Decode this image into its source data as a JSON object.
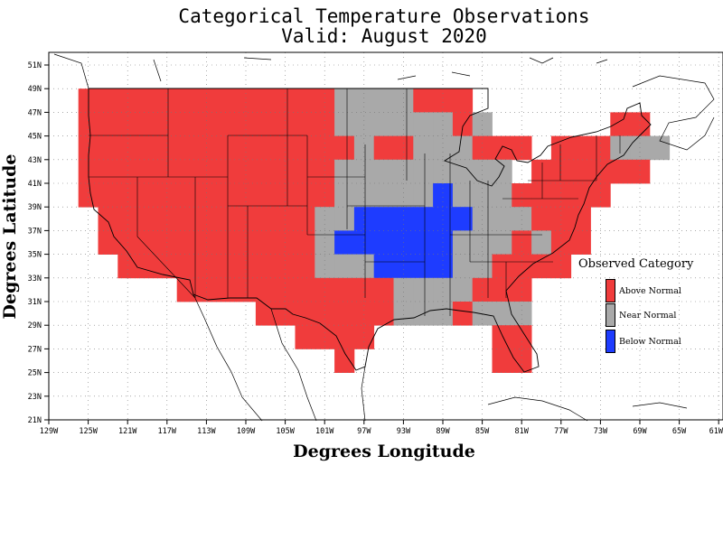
{
  "title": {
    "line1": "Categorical Temperature Observations",
    "line2": "Valid: August 2020"
  },
  "axes": {
    "xlabel": "Degrees Longitude",
    "ylabel": "Degrees Latitude",
    "xticks": [
      "129W",
      "125W",
      "121W",
      "117W",
      "113W",
      "109W",
      "105W",
      "101W",
      "97W",
      "93W",
      "89W",
      "85W",
      "81W",
      "77W",
      "73W",
      "69W",
      "65W",
      "61W"
    ],
    "yticks": [
      "21N",
      "23N",
      "25N",
      "27N",
      "29N",
      "31N",
      "33N",
      "35N",
      "37N",
      "39N",
      "41N",
      "43N",
      "45N",
      "47N",
      "49N",
      "51N"
    ],
    "lon_range": [
      -129,
      -61
    ],
    "lat_range": [
      21,
      52
    ],
    "grid": "dotted"
  },
  "legend": {
    "title": "Observed Category",
    "items": [
      {
        "label": "Above Normal",
        "color": "#f03c3c"
      },
      {
        "label": "Near Normal",
        "color": "#a9a9a9"
      },
      {
        "label": "Below Normal",
        "color": "#1e3cff"
      }
    ]
  },
  "chart_data": {
    "type": "heatmap",
    "cell_size_degrees": 2,
    "categories": {
      "A": "Above Normal",
      "N": "Near Normal",
      "B": "Below Normal"
    },
    "rows": [
      {
        "lat": 48,
        "cells": [
          [
            -125,
            "A"
          ],
          [
            -123,
            "A"
          ],
          [
            -121,
            "A"
          ],
          [
            -119,
            "A"
          ],
          [
            -117,
            "A"
          ],
          [
            -115,
            "A"
          ],
          [
            -113,
            "A"
          ],
          [
            -111,
            "A"
          ],
          [
            -109,
            "A"
          ],
          [
            -107,
            "A"
          ],
          [
            -105,
            "A"
          ],
          [
            -103,
            "A"
          ],
          [
            -101,
            "A"
          ],
          [
            -99,
            "N"
          ],
          [
            -97,
            "N"
          ],
          [
            -95,
            "N"
          ],
          [
            -93,
            "N"
          ],
          [
            -91,
            "A"
          ],
          [
            -89,
            "A"
          ],
          [
            -87,
            "A"
          ]
        ]
      },
      {
        "lat": 46,
        "cells": [
          [
            -125,
            "A"
          ],
          [
            -123,
            "A"
          ],
          [
            -121,
            "A"
          ],
          [
            -119,
            "A"
          ],
          [
            -117,
            "A"
          ],
          [
            -115,
            "A"
          ],
          [
            -113,
            "A"
          ],
          [
            -111,
            "A"
          ],
          [
            -109,
            "A"
          ],
          [
            -107,
            "A"
          ],
          [
            -105,
            "A"
          ],
          [
            -103,
            "A"
          ],
          [
            -101,
            "A"
          ],
          [
            -99,
            "N"
          ],
          [
            -97,
            "N"
          ],
          [
            -95,
            "N"
          ],
          [
            -93,
            "N"
          ],
          [
            -91,
            "N"
          ],
          [
            -89,
            "N"
          ],
          [
            -87,
            "A"
          ],
          [
            -85,
            "N"
          ],
          [
            -71,
            "A"
          ],
          [
            -69,
            "A"
          ]
        ]
      },
      {
        "lat": 44,
        "cells": [
          [
            -125,
            "A"
          ],
          [
            -123,
            "A"
          ],
          [
            -121,
            "A"
          ],
          [
            -119,
            "A"
          ],
          [
            -117,
            "A"
          ],
          [
            -115,
            "A"
          ],
          [
            -113,
            "A"
          ],
          [
            -111,
            "A"
          ],
          [
            -109,
            "A"
          ],
          [
            -107,
            "A"
          ],
          [
            -105,
            "A"
          ],
          [
            -103,
            "A"
          ],
          [
            -101,
            "A"
          ],
          [
            -99,
            "A"
          ],
          [
            -97,
            "N"
          ],
          [
            -95,
            "A"
          ],
          [
            -93,
            "A"
          ],
          [
            -91,
            "N"
          ],
          [
            -89,
            "N"
          ],
          [
            -87,
            "N"
          ],
          [
            -85,
            "A"
          ],
          [
            -83,
            "A"
          ],
          [
            -81,
            "A"
          ],
          [
            -77,
            "A"
          ],
          [
            -75,
            "A"
          ],
          [
            -73,
            "A"
          ],
          [
            -71,
            "N"
          ],
          [
            -69,
            "N"
          ],
          [
            -67,
            "N"
          ]
        ]
      },
      {
        "lat": 42,
        "cells": [
          [
            -125,
            "A"
          ],
          [
            -123,
            "A"
          ],
          [
            -121,
            "A"
          ],
          [
            -119,
            "A"
          ],
          [
            -117,
            "A"
          ],
          [
            -115,
            "A"
          ],
          [
            -113,
            "A"
          ],
          [
            -111,
            "A"
          ],
          [
            -109,
            "A"
          ],
          [
            -107,
            "A"
          ],
          [
            -105,
            "A"
          ],
          [
            -103,
            "A"
          ],
          [
            -101,
            "A"
          ],
          [
            -99,
            "N"
          ],
          [
            -97,
            "N"
          ],
          [
            -95,
            "N"
          ],
          [
            -93,
            "N"
          ],
          [
            -91,
            "N"
          ],
          [
            -89,
            "N"
          ],
          [
            -87,
            "N"
          ],
          [
            -85,
            "N"
          ],
          [
            -83,
            "N"
          ],
          [
            -79,
            "A"
          ],
          [
            -77,
            "A"
          ],
          [
            -75,
            "A"
          ],
          [
            -73,
            "A"
          ],
          [
            -71,
            "A"
          ],
          [
            -69,
            "A"
          ]
        ]
      },
      {
        "lat": 40,
        "cells": [
          [
            -125,
            "A"
          ],
          [
            -123,
            "A"
          ],
          [
            -121,
            "A"
          ],
          [
            -119,
            "A"
          ],
          [
            -117,
            "A"
          ],
          [
            -115,
            "A"
          ],
          [
            -113,
            "A"
          ],
          [
            -111,
            "A"
          ],
          [
            -109,
            "A"
          ],
          [
            -107,
            "A"
          ],
          [
            -105,
            "A"
          ],
          [
            -103,
            "A"
          ],
          [
            -101,
            "A"
          ],
          [
            -99,
            "N"
          ],
          [
            -97,
            "N"
          ],
          [
            -95,
            "N"
          ],
          [
            -93,
            "N"
          ],
          [
            -91,
            "N"
          ],
          [
            -89,
            "B"
          ],
          [
            -87,
            "N"
          ],
          [
            -85,
            "N"
          ],
          [
            -83,
            "N"
          ],
          [
            -81,
            "A"
          ],
          [
            -79,
            "A"
          ],
          [
            -77,
            "A"
          ],
          [
            -75,
            "A"
          ],
          [
            -73,
            "A"
          ]
        ]
      },
      {
        "lat": 38,
        "cells": [
          [
            -123,
            "A"
          ],
          [
            -121,
            "A"
          ],
          [
            -119,
            "A"
          ],
          [
            -117,
            "A"
          ],
          [
            -115,
            "A"
          ],
          [
            -113,
            "A"
          ],
          [
            -111,
            "A"
          ],
          [
            -109,
            "A"
          ],
          [
            -107,
            "A"
          ],
          [
            -105,
            "A"
          ],
          [
            -103,
            "A"
          ],
          [
            -101,
            "N"
          ],
          [
            -99,
            "N"
          ],
          [
            -97,
            "B"
          ],
          [
            -95,
            "B"
          ],
          [
            -93,
            "B"
          ],
          [
            -91,
            "B"
          ],
          [
            -89,
            "B"
          ],
          [
            -87,
            "B"
          ],
          [
            -85,
            "N"
          ],
          [
            -83,
            "N"
          ],
          [
            -81,
            "N"
          ],
          [
            -79,
            "A"
          ],
          [
            -77,
            "A"
          ],
          [
            -75,
            "A"
          ]
        ]
      },
      {
        "lat": 36,
        "cells": [
          [
            -123,
            "A"
          ],
          [
            -121,
            "A"
          ],
          [
            -119,
            "A"
          ],
          [
            -117,
            "A"
          ],
          [
            -115,
            "A"
          ],
          [
            -113,
            "A"
          ],
          [
            -111,
            "A"
          ],
          [
            -109,
            "A"
          ],
          [
            -107,
            "A"
          ],
          [
            -105,
            "A"
          ],
          [
            -103,
            "A"
          ],
          [
            -101,
            "N"
          ],
          [
            -99,
            "B"
          ],
          [
            -97,
            "B"
          ],
          [
            -95,
            "B"
          ],
          [
            -93,
            "B"
          ],
          [
            -91,
            "B"
          ],
          [
            -89,
            "B"
          ],
          [
            -87,
            "N"
          ],
          [
            -85,
            "N"
          ],
          [
            -83,
            "N"
          ],
          [
            -81,
            "A"
          ],
          [
            -79,
            "N"
          ],
          [
            -77,
            "A"
          ],
          [
            -75,
            "A"
          ]
        ]
      },
      {
        "lat": 34,
        "cells": [
          [
            -121,
            "A"
          ],
          [
            -119,
            "A"
          ],
          [
            -117,
            "A"
          ],
          [
            -115,
            "A"
          ],
          [
            -113,
            "A"
          ],
          [
            -111,
            "A"
          ],
          [
            -109,
            "A"
          ],
          [
            -107,
            "A"
          ],
          [
            -105,
            "A"
          ],
          [
            -103,
            "A"
          ],
          [
            -101,
            "N"
          ],
          [
            -99,
            "N"
          ],
          [
            -97,
            "N"
          ],
          [
            -95,
            "B"
          ],
          [
            -93,
            "B"
          ],
          [
            -91,
            "B"
          ],
          [
            -89,
            "B"
          ],
          [
            -87,
            "N"
          ],
          [
            -85,
            "N"
          ],
          [
            -83,
            "A"
          ],
          [
            -81,
            "A"
          ],
          [
            -79,
            "A"
          ],
          [
            -77,
            "A"
          ]
        ]
      },
      {
        "lat": 32,
        "cells": [
          [
            -115,
            "A"
          ],
          [
            -113,
            "A"
          ],
          [
            -111,
            "A"
          ],
          [
            -109,
            "A"
          ],
          [
            -107,
            "A"
          ],
          [
            -105,
            "A"
          ],
          [
            -103,
            "A"
          ],
          [
            -101,
            "A"
          ],
          [
            -99,
            "A"
          ],
          [
            -97,
            "A"
          ],
          [
            -95,
            "A"
          ],
          [
            -93,
            "N"
          ],
          [
            -91,
            "N"
          ],
          [
            -89,
            "N"
          ],
          [
            -87,
            "N"
          ],
          [
            -85,
            "A"
          ],
          [
            -83,
            "A"
          ],
          [
            -81,
            "A"
          ]
        ]
      },
      {
        "lat": 30,
        "cells": [
          [
            -107,
            "A"
          ],
          [
            -105,
            "A"
          ],
          [
            -103,
            "A"
          ],
          [
            -101,
            "A"
          ],
          [
            -99,
            "A"
          ],
          [
            -97,
            "A"
          ],
          [
            -95,
            "A"
          ],
          [
            -93,
            "N"
          ],
          [
            -91,
            "N"
          ],
          [
            -89,
            "N"
          ],
          [
            -87,
            "A"
          ],
          [
            -85,
            "N"
          ],
          [
            -83,
            "N"
          ],
          [
            -81,
            "N"
          ]
        ]
      },
      {
        "lat": 28,
        "cells": [
          [
            -103,
            "A"
          ],
          [
            -101,
            "A"
          ],
          [
            -99,
            "A"
          ],
          [
            -97,
            "A"
          ],
          [
            -83,
            "A"
          ],
          [
            -81,
            "A"
          ]
        ]
      },
      {
        "lat": 26,
        "cells": [
          [
            -99,
            "A"
          ],
          [
            -83,
            "A"
          ],
          [
            -81,
            "A"
          ]
        ]
      }
    ]
  }
}
